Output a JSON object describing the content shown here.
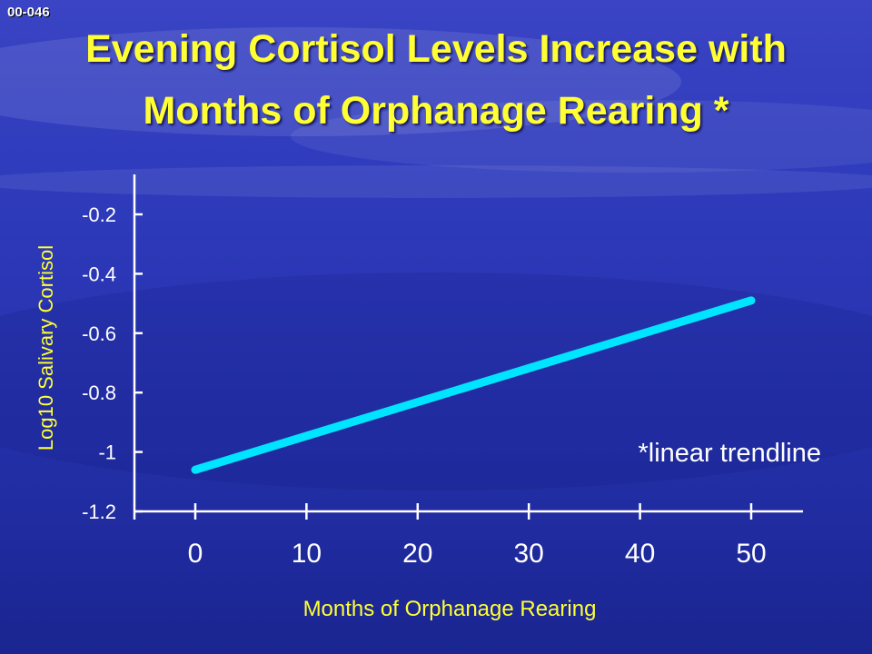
{
  "slide": {
    "code": "00-046",
    "title_line1": "Evening Cortisol Levels Increase with",
    "title_line2": "Months of Orphanage Rearing *",
    "colors": {
      "title": "#ffff33",
      "trendline": "#00e5ff",
      "axis": "#ffffff",
      "axis_label": "#ffff33"
    }
  },
  "chart_data": {
    "type": "line",
    "title": "",
    "xlabel": "Months of Orphanage Rearing",
    "ylabel": "Log10 Salivary Cortisol",
    "x_ticks": [
      "0",
      "10",
      "20",
      "30",
      "40",
      "50"
    ],
    "y_ticks": [
      "-0.2",
      "-0.4",
      "-0.6",
      "-0.8",
      "-1",
      "-1.2"
    ],
    "xlim": [
      0,
      50
    ],
    "ylim": [
      -1.2,
      -0.1
    ],
    "grid": false,
    "series": [
      {
        "x": [
          0,
          50
        ],
        "y": [
          -1.06,
          -0.49
        ]
      }
    ],
    "annotation": "*linear trendline"
  }
}
